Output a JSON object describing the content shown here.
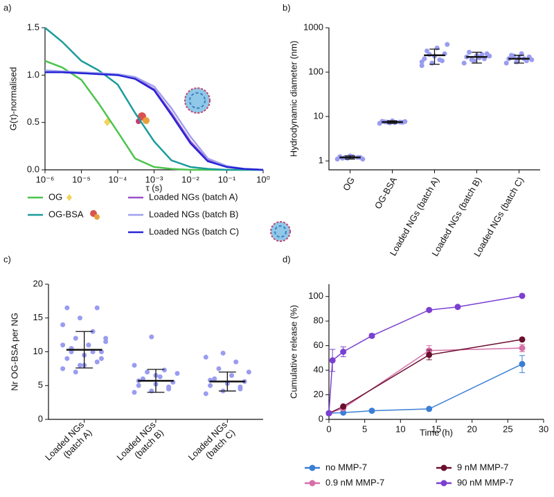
{
  "chart_data": [
    {
      "type": "line",
      "label": "a)",
      "xlabel": "τ (s)",
      "ylabel": "G(τ)-normalised",
      "xscale": "log",
      "x": [
        1e-06,
        3e-06,
        1e-05,
        3e-05,
        0.0001,
        0.0003,
        0.001,
        0.003,
        0.01,
        0.03,
        0.1,
        0.3,
        1
      ],
      "xlim": [
        1e-06,
        1
      ],
      "xticks": [
        {
          "value": 1e-06,
          "label": "10⁻⁶"
        },
        {
          "value": 1e-05,
          "label": "10⁻⁵"
        },
        {
          "value": 0.0001,
          "label": "10⁻⁴"
        },
        {
          "value": 0.001,
          "label": "10⁻³"
        },
        {
          "value": 0.01,
          "label": "10⁻²"
        },
        {
          "value": 0.1,
          "label": "10⁻¹"
        },
        {
          "value": 1,
          "label": "10⁰"
        }
      ],
      "ylim": [
        0,
        1.5
      ],
      "yticks": [
        {
          "value": 0,
          "label": "0.0"
        },
        {
          "value": 0.5,
          "label": "0.5"
        },
        {
          "value": 1,
          "label": "1.0"
        },
        {
          "value": 1.5,
          "label": "1.5"
        }
      ],
      "series": [
        {
          "name": "OG",
          "color": "#4cc44c",
          "values": [
            1.15,
            1.08,
            0.95,
            0.7,
            0.4,
            0.12,
            0.03,
            0.01,
            0,
            0,
            0,
            0,
            0
          ]
        },
        {
          "name": "OG-BSA",
          "color": "#1a9b9b",
          "values": [
            1.5,
            1.35,
            1.15,
            1.05,
            0.9,
            0.6,
            0.3,
            0.1,
            0.03,
            0.01,
            0,
            0,
            0
          ]
        },
        {
          "name": "Loaded NGs (batch A)",
          "color": "#9c4fc9",
          "values": [
            1.03,
            1.03,
            1.02,
            1.02,
            1.0,
            0.97,
            0.85,
            0.6,
            0.3,
            0.1,
            0.03,
            0.01,
            0
          ]
        },
        {
          "name": "Loaded NGs (batch B)",
          "color": "#9fa0ef",
          "values": [
            1.05,
            1.04,
            1.03,
            1.02,
            1.01,
            0.98,
            0.88,
            0.65,
            0.35,
            0.12,
            0.04,
            0.01,
            0
          ]
        },
        {
          "name": "Loaded NGs (batch C)",
          "color": "#2424d6",
          "values": [
            1.03,
            1.03,
            1.02,
            1.01,
            1.0,
            0.96,
            0.84,
            0.58,
            0.28,
            0.09,
            0.03,
            0.01,
            0
          ]
        }
      ]
    },
    {
      "type": "dot",
      "label": "b)",
      "ylabel": "Hydrodynamic diameter (nm)",
      "yscale": "log",
      "color": "#9a9cf0",
      "categories": [
        "OG",
        "OG-BSA",
        "Loaded NGs (batch A)",
        "Loaded NGs (batch B)",
        "Loaded NGs (batch C)"
      ],
      "ylim": [
        0.63,
        1000
      ],
      "yticks": [
        1,
        10,
        100,
        1000
      ],
      "values": [
        1.2,
        7.5,
        240,
        220,
        200
      ],
      "errors": [
        0.1,
        0.5,
        90,
        60,
        40
      ],
      "points": [
        [
          1.1,
          1.15,
          1.2,
          1.25,
          1.3,
          1.2,
          1.15,
          1.25,
          1.1,
          1.2
        ],
        [
          7,
          7.2,
          7.5,
          7.8,
          8,
          7.4,
          7.6,
          7.3,
          7.7,
          7.5
        ],
        [
          140,
          160,
          180,
          200,
          230,
          260,
          300,
          350,
          420,
          250,
          190,
          170
        ],
        [
          160,
          180,
          200,
          220,
          240,
          260,
          280,
          210,
          230,
          190,
          250
        ],
        [
          160,
          170,
          180,
          200,
          210,
          220,
          240,
          260,
          190,
          230,
          200
        ]
      ]
    },
    {
      "type": "dot",
      "label": "c)",
      "ylabel": "Nr OG-BSA per NG",
      "color": "#9a9cf0",
      "categories": [
        "Loaded NGs (batch A)",
        "Loaded NGs (batch B)",
        "Loaded NGs (batch C)"
      ],
      "ylim": [
        0,
        20
      ],
      "yticks": [
        0,
        5,
        10,
        15,
        20
      ],
      "values": [
        10.3,
        5.7,
        5.6
      ],
      "errors": [
        2.7,
        1.7,
        1.4
      ],
      "points": [
        [
          7.5,
          8,
          8.5,
          9,
          9.5,
          10,
          10.5,
          11,
          11.5,
          12,
          13,
          14,
          15,
          16.5,
          16.5,
          8,
          9,
          10,
          11,
          12,
          7,
          10,
          11
        ],
        [
          4,
          4.2,
          4.5,
          5,
          5.2,
          5.5,
          6,
          6.3,
          6.8,
          7,
          7.3,
          8,
          12.2,
          4.8,
          5.7,
          6.5
        ],
        [
          3.8,
          4.2,
          4.5,
          5,
          5.3,
          5.6,
          6,
          6.5,
          7,
          7.5,
          8.5,
          9.2,
          9.8,
          4.8,
          5.8
        ]
      ]
    },
    {
      "type": "line",
      "label": "d)",
      "xlabel": "Time (h)",
      "ylabel": "Cumulative release (%)",
      "markers": true,
      "xlim": [
        0,
        30
      ],
      "xticks": [
        0,
        5,
        10,
        15,
        20,
        25,
        30
      ],
      "ylim": [
        0,
        110
      ],
      "yticks": [
        0,
        20,
        40,
        60,
        80,
        100
      ],
      "series": [
        {
          "name": "no MMP-7",
          "color": "#3a7fd5",
          "x": [
            0,
            2,
            6,
            14,
            27
          ],
          "values": [
            5,
            5.5,
            7,
            8.5,
            45
          ],
          "errors": [
            0,
            0,
            0,
            0,
            7
          ]
        },
        {
          "name": "0.9 nM MMP-7",
          "color": "#d46fa7",
          "x": [
            0,
            2,
            14,
            27
          ],
          "values": [
            5,
            9,
            56,
            58
          ],
          "errors": [
            0,
            0,
            4,
            3
          ]
        },
        {
          "name": "9 nM MMP-7",
          "color": "#6b0f2e",
          "x": [
            0,
            2,
            14,
            27
          ],
          "values": [
            5,
            10.5,
            52.5,
            65
          ],
          "errors": [
            0,
            0,
            4,
            0
          ]
        },
        {
          "name": "90 nM MMP-7",
          "color": "#7b3fd1",
          "x": [
            0,
            0.5,
            2,
            6,
            14,
            18,
            27
          ],
          "values": [
            5,
            48,
            55,
            68,
            89,
            91.5,
            100.5
          ],
          "errors": [
            0,
            9,
            4,
            1.5,
            1,
            1,
            1
          ]
        }
      ]
    }
  ]
}
